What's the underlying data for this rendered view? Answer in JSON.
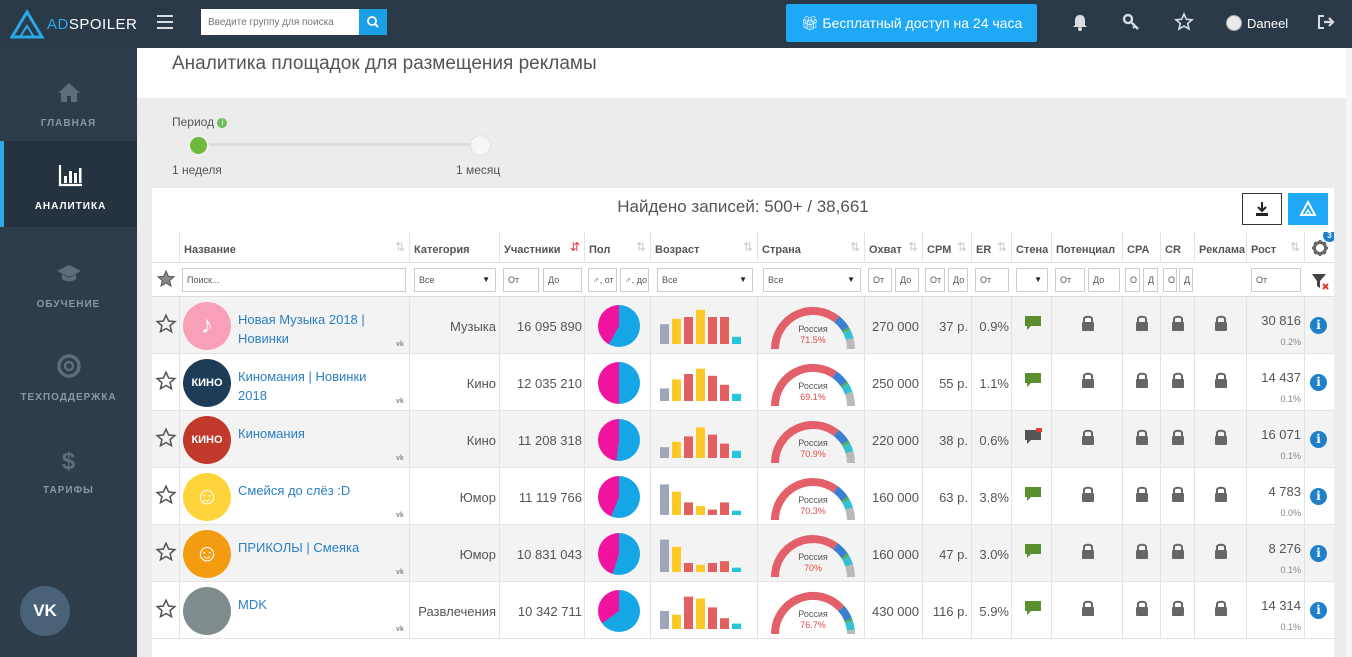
{
  "app": {
    "logo_prefix": "AD",
    "logo_suffix": "SPOILER",
    "search_placeholder": "Введите группу для поиска",
    "promo_label": "Бесплатный доступ на 24 часа",
    "user_name": "Daneel"
  },
  "sidebar": {
    "items": [
      {
        "label": "ГЛАВНАЯ",
        "icon": "home-icon",
        "active": false
      },
      {
        "label": "АНАЛИТИКА",
        "icon": "bar-chart-icon",
        "active": true
      },
      {
        "label": "ОБУЧЕНИЕ",
        "icon": "graduation-cap-icon",
        "active": false
      },
      {
        "label": "ТЕХПОДДЕРЖКА",
        "icon": "lifebuoy-icon",
        "active": false
      },
      {
        "label": "ТАРИФЫ",
        "icon": "dollar-icon",
        "active": false
      }
    ],
    "vk_label": "VK"
  },
  "page": {
    "title": "Аналитика площадок для размещения рекламы",
    "period_label": "Период",
    "period_min": "1 неделя",
    "period_max": "1 месяц",
    "period_value": 0,
    "records_text": "Найдено записей: 500+ / 38,661",
    "settings_badge": "3"
  },
  "table": {
    "headers": {
      "name": "Название",
      "category": "Категория",
      "members": "Участники",
      "sex": "Пол",
      "age": "Возраст",
      "country": "Страна",
      "reach": "Охват",
      "cpm": "CPM",
      "er": "ER",
      "wall": "Стена",
      "potential": "Потенциал",
      "cpa": "CPA",
      "cr": "CR",
      "ads": "Реклама",
      "growth": "Рост"
    },
    "filters": {
      "search": "Поиск...",
      "all": "Все",
      "from": "От",
      "to": "До",
      "from_short": "О",
      "to_short": "Д",
      "sex_from": "♂, от",
      "sex_to": "♂, до"
    },
    "rows": [
      {
        "name": "Новая Музыка 2018 | Новинки",
        "category": "Музыка",
        "members": "16 095 890",
        "female_share": 0.42,
        "age": [
          0.55,
          0.7,
          0.75,
          0.95,
          0.75,
          0.75,
          0.2
        ],
        "country": "Россия",
        "country_pct": "71.5%",
        "country_share": 0.715,
        "reach": "270 000",
        "cpm": "37 р.",
        "er": "0.9%",
        "wall_locked": false,
        "growth": "30 816",
        "growth_pct": "0.2%",
        "avatar_color": "#f7a0b8",
        "avatar_glyph": "♪"
      },
      {
        "name": "Киномания | Новинки 2018",
        "category": "Кино",
        "members": "12 035 210",
        "female_share": 0.5,
        "age": [
          0.35,
          0.6,
          0.75,
          0.9,
          0.7,
          0.45,
          0.2
        ],
        "country": "Россия",
        "country_pct": "69.1%",
        "country_share": 0.691,
        "reach": "250 000",
        "cpm": "55 р.",
        "er": "1.1%",
        "wall_locked": false,
        "growth": "14 437",
        "growth_pct": "0.1%",
        "avatar_color": "#1d3c58",
        "avatar_glyph": "КИНО"
      },
      {
        "name": "Киномания",
        "category": "Кино",
        "members": "11 208 318",
        "female_share": 0.48,
        "age": [
          0.3,
          0.45,
          0.6,
          0.85,
          0.65,
          0.4,
          0.2
        ],
        "country": "Россия",
        "country_pct": "70.9%",
        "country_share": 0.709,
        "reach": "220 000",
        "cpm": "38 р.",
        "er": "0.6%",
        "wall_locked": true,
        "growth": "16 071",
        "growth_pct": "0.1%",
        "avatar_color": "#c0392b",
        "avatar_glyph": "КИНО"
      },
      {
        "name": "Смейся до слёз :D",
        "category": "Юмор",
        "members": "11 119 766",
        "female_share": 0.44,
        "age": [
          0.85,
          0.65,
          0.35,
          0.25,
          0.15,
          0.35,
          0.12
        ],
        "country": "Россия",
        "country_pct": "70.3%",
        "country_share": 0.703,
        "reach": "160 000",
        "cpm": "63 р.",
        "er": "3.8%",
        "wall_locked": false,
        "growth": "4 783",
        "growth_pct": "0.0%",
        "avatar_color": "#ffd43b",
        "avatar_glyph": "☺"
      },
      {
        "name": "ПРИКОЛЫ | Смеяка",
        "category": "Юмор",
        "members": "10 831 043",
        "female_share": 0.45,
        "age": [
          0.9,
          0.7,
          0.25,
          0.2,
          0.25,
          0.3,
          0.12
        ],
        "country": "Россия",
        "country_pct": "70%",
        "country_share": 0.7,
        "reach": "160 000",
        "cpm": "47 р.",
        "er": "3.0%",
        "wall_locked": false,
        "growth": "8 276",
        "growth_pct": "0.1%",
        "avatar_color": "#f39c12",
        "avatar_glyph": "☺"
      },
      {
        "name": "MDK",
        "category": "Развлечения",
        "members": "10 342 711",
        "female_share": 0.35,
        "age": [
          0.5,
          0.4,
          0.9,
          0.85,
          0.6,
          0.3,
          0.15
        ],
        "country": "Россия",
        "country_pct": "76.7%",
        "country_share": 0.767,
        "reach": "430 000",
        "cpm": "116 р.",
        "er": "5.9%",
        "wall_locked": false,
        "growth": "14 314",
        "growth_pct": "0.1%",
        "avatar_color": "#7f8c8d",
        "avatar_glyph": ""
      }
    ]
  },
  "colors": {
    "accent": "#1ea8f5",
    "female": "#f0139f",
    "male": "#15a6e6",
    "age_bars": [
      "#9ea6b8",
      "#ffca28",
      "#e36060",
      "#ffca28",
      "#e36060",
      "#e36060",
      "#26c6da"
    ],
    "gauge_main": "#e35f6a",
    "gauge_blue": "#3a7fd1",
    "gauge_green": "#4caf50",
    "gauge_cyan": "#35c0d4",
    "gauge_grey": "#b9b9b9"
  }
}
